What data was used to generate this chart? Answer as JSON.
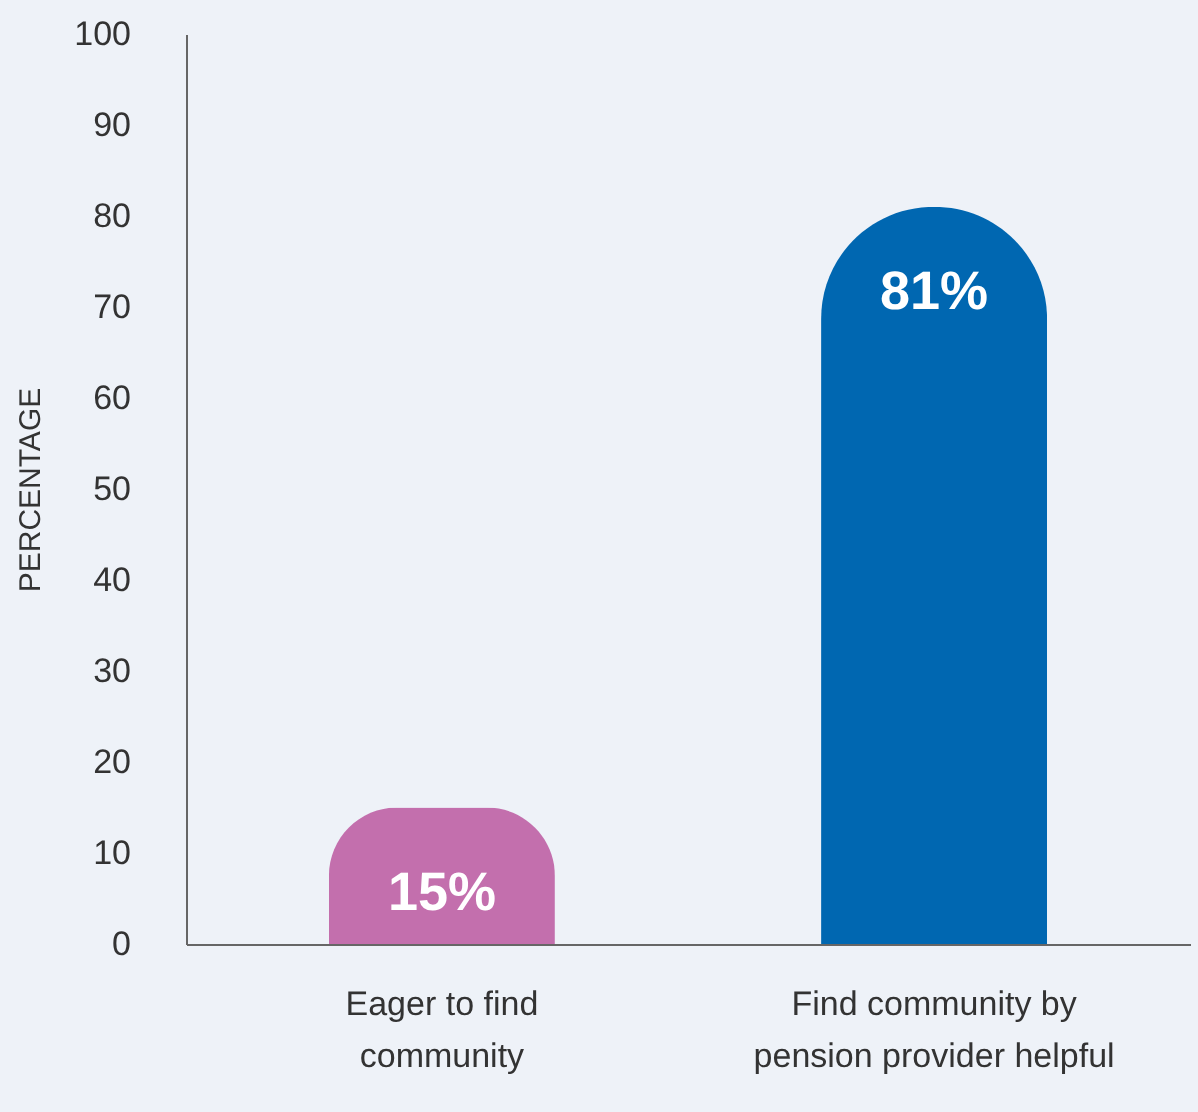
{
  "chart_data": {
    "type": "bar",
    "ylabel": "PERCENTAGE",
    "categories": [
      "Eager to find community",
      "Find community by pension provider helpful"
    ],
    "values": [
      15,
      81
    ],
    "colors": [
      "#c36fad",
      "#0067b1"
    ],
    "value_labels": [
      "15%",
      "81%"
    ],
    "ylim": [
      0,
      100
    ],
    "yticks": [
      0,
      10,
      20,
      30,
      40,
      50,
      60,
      70,
      80,
      90,
      100
    ],
    "grid": false
  }
}
